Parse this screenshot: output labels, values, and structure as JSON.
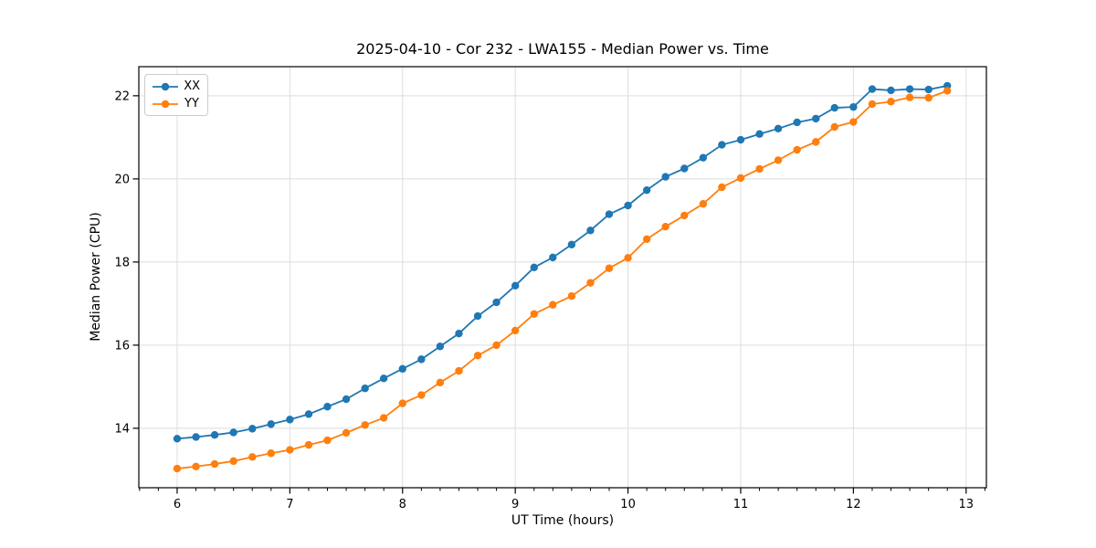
{
  "chart_data": {
    "type": "line",
    "title": "2025-04-10 - Cor 232 - LWA155 - Median Power vs. Time",
    "xlabel": "UT Time (hours)",
    "ylabel": "Median Power (CPU)",
    "xlim": [
      5.66,
      13.18
    ],
    "ylim": [
      12.57,
      22.7
    ],
    "xticks": [
      6,
      7,
      8,
      9,
      10,
      11,
      12,
      13
    ],
    "yticks": [
      14,
      16,
      18,
      20,
      22
    ],
    "x_minor_step": 0.166667,
    "grid": "major",
    "grid_color": "#dedede",
    "legend_position": "upper-left",
    "x": [
      6.0,
      6.167,
      6.333,
      6.5,
      6.667,
      6.833,
      7.0,
      7.167,
      7.333,
      7.5,
      7.667,
      7.833,
      8.0,
      8.167,
      8.333,
      8.5,
      8.667,
      8.833,
      9.0,
      9.167,
      9.333,
      9.5,
      9.667,
      9.833,
      10.0,
      10.167,
      10.333,
      10.5,
      10.667,
      10.833,
      11.0,
      11.167,
      11.333,
      11.5,
      11.667,
      11.833,
      12.0,
      12.167,
      12.333,
      12.5,
      12.667,
      12.833
    ],
    "series": [
      {
        "name": "XX",
        "color": "#1f77b4",
        "values": [
          13.75,
          13.79,
          13.84,
          13.9,
          13.99,
          14.1,
          14.21,
          14.34,
          14.52,
          14.7,
          14.96,
          15.2,
          15.43,
          15.66,
          15.97,
          16.28,
          16.7,
          17.03,
          17.43,
          17.87,
          18.11,
          18.42,
          18.76,
          19.15,
          19.36,
          19.73,
          20.05,
          20.25,
          20.51,
          20.82,
          20.94,
          21.08,
          21.21,
          21.36,
          21.45,
          21.71,
          21.73,
          22.16,
          22.13,
          22.16,
          22.15,
          22.24
        ]
      },
      {
        "name": "YY",
        "color": "#ff7f0e",
        "values": [
          13.03,
          13.08,
          13.14,
          13.21,
          13.31,
          13.4,
          13.48,
          13.6,
          13.71,
          13.89,
          14.08,
          14.25,
          14.6,
          14.8,
          15.1,
          15.38,
          15.75,
          16.0,
          16.35,
          16.75,
          16.97,
          17.18,
          17.5,
          17.85,
          18.1,
          18.55,
          18.85,
          19.12,
          19.4,
          19.8,
          20.02,
          20.24,
          20.45,
          20.7,
          20.89,
          21.25,
          21.37,
          21.8,
          21.86,
          21.96,
          21.95,
          22.12
        ]
      }
    ]
  }
}
